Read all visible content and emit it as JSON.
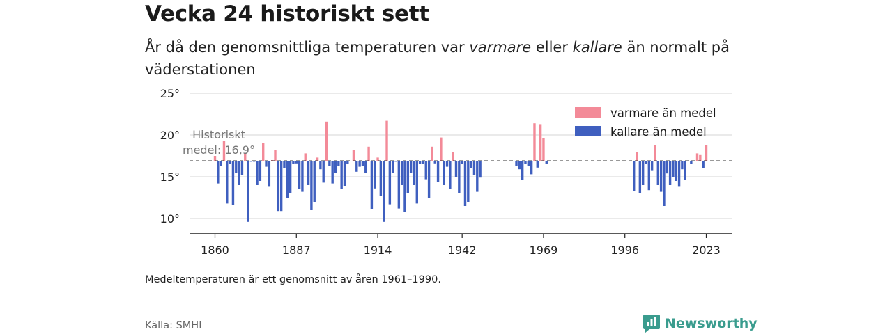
{
  "header": {
    "title": "Vecka 24 historiskt sett",
    "subtitle_part1": "År då den genomsnittliga temperaturen var ",
    "subtitle_warm_word": "varmare",
    "subtitle_part2": " eller ",
    "subtitle_cold_word": "kallare",
    "subtitle_part3": " än normalt på väderstationen"
  },
  "footer": {
    "note": "Medeltemperaturen är ett genomsnitt av åren 1961–1990.",
    "source": "Källa: SMHI",
    "brand": "Newsworthy"
  },
  "colors": {
    "warm": "#f38a98",
    "cold": "#3f5fbf",
    "reference_line": "#333333",
    "grid": "#dddddd",
    "brand": "#3a9c8e"
  },
  "chart_data": {
    "type": "bar",
    "title": "Vecka 24 historiskt sett",
    "baseline": 16.9,
    "reference_label_line1": "Historiskt",
    "reference_label_line2": "medel: 16,9°",
    "ylim": [
      8.2,
      25
    ],
    "xlim": [
      1854,
      2030
    ],
    "y_ticks": [
      10,
      15,
      20,
      25
    ],
    "y_tick_labels": [
      "10°",
      "15°",
      "20°",
      "25°"
    ],
    "x_ticks": [
      1860,
      1887,
      1914,
      1942,
      1969,
      1996,
      2023
    ],
    "x_tick_labels": [
      "1860",
      "1887",
      "1914",
      "1942",
      "1969",
      "1996",
      "2023"
    ],
    "grid": true,
    "legend_position": "top-right",
    "legend": [
      {
        "label": "varmare än medel",
        "key": "warm"
      },
      {
        "label": "kallare än medel",
        "key": "cold"
      }
    ],
    "years": [
      1860,
      1861,
      1862,
      1863,
      1864,
      1865,
      1866,
      1867,
      1868,
      1869,
      1870,
      1871,
      1872,
      1873,
      1874,
      1875,
      1876,
      1877,
      1878,
      1879,
      1880,
      1881,
      1882,
      1883,
      1884,
      1885,
      1886,
      1887,
      1888,
      1889,
      1890,
      1891,
      1892,
      1893,
      1894,
      1895,
      1896,
      1897,
      1898,
      1899,
      1900,
      1901,
      1902,
      1903,
      1904,
      1905,
      1906,
      1907,
      1908,
      1909,
      1910,
      1911,
      1912,
      1913,
      1914,
      1915,
      1916,
      1917,
      1918,
      1919,
      1920,
      1921,
      1922,
      1923,
      1924,
      1925,
      1926,
      1927,
      1928,
      1929,
      1930,
      1931,
      1932,
      1933,
      1934,
      1935,
      1936,
      1937,
      1938,
      1939,
      1940,
      1941,
      1942,
      1943,
      1944,
      1945,
      1946,
      1947,
      1948,
      1960,
      1961,
      1962,
      1963,
      1964,
      1965,
      1966,
      1967,
      1968,
      1969,
      1970,
      1999,
      2000,
      2001,
      2002,
      2003,
      2004,
      2005,
      2006,
      2007,
      2008,
      2009,
      2010,
      2011,
      2012,
      2013,
      2014,
      2015,
      2016,
      2017,
      2018,
      2019,
      2020,
      2021,
      2022,
      2023
    ],
    "values": [
      17.5,
      14.2,
      16.3,
      19.3,
      11.8,
      16.5,
      11.6,
      15.5,
      14.0,
      15.2,
      17.8,
      9.6,
      16.8,
      16.8,
      14.0,
      14.5,
      19.0,
      16.2,
      13.8,
      17.0,
      18.2,
      10.9,
      10.9,
      16.0,
      12.5,
      13.0,
      16.5,
      16.6,
      13.5,
      13.2,
      17.8,
      14.0,
      11.0,
      12.0,
      17.3,
      15.9,
      14.3,
      21.6,
      16.3,
      14.2,
      15.5,
      16.3,
      13.5,
      13.9,
      16.5,
      16.9,
      18.2,
      15.6,
      16.2,
      16.3,
      15.5,
      18.6,
      11.1,
      13.6,
      17.3,
      12.7,
      9.6,
      21.7,
      11.7,
      15.5,
      16.8,
      11.2,
      14.0,
      10.8,
      13.0,
      15.5,
      14.0,
      11.8,
      16.5,
      16.5,
      14.7,
      12.5,
      18.6,
      16.6,
      14.4,
      19.7,
      14.0,
      16.2,
      13.5,
      18.0,
      15.0,
      13.0,
      16.5,
      11.5,
      12.0,
      16.0,
      15.2,
      13.2,
      14.9,
      16.3,
      15.9,
      14.6,
      16.5,
      16.3,
      15.3,
      21.4,
      16.1,
      21.3,
      19.6,
      16.5,
      13.3,
      18.0,
      13.0,
      14.0,
      16.5,
      13.4,
      15.7,
      18.8,
      14.0,
      13.2,
      11.5,
      15.4,
      14.0,
      15.0,
      14.5,
      13.8,
      15.9,
      14.6,
      16.9,
      16.5,
      16.9,
      17.8,
      17.6,
      16.0,
      18.8
    ]
  }
}
